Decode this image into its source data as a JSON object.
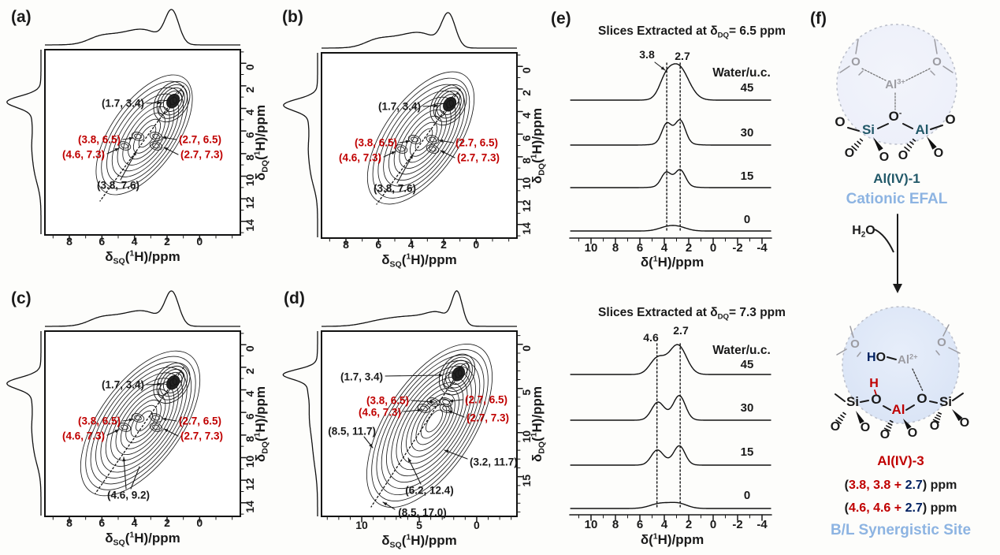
{
  "colors": {
    "ink": "#1A1A1A",
    "red": "#C00000",
    "navy": "#002060",
    "teal": "#215868",
    "light_blue": "#8DB4E2",
    "gray_atom": "#9C9CA2",
    "circle_stroke": "#BDC1CC",
    "circle_fill_top": "#ECEFF9",
    "circle_fill_bottom": "#D7E2F5"
  },
  "axis": {
    "sq_label": {
      "parts": [
        {
          "t": "δ"
        },
        {
          "t": "SQ",
          "k": "sub"
        },
        {
          "t": "("
        },
        {
          "t": "1",
          "k": "sup"
        },
        {
          "t": "H)/ppm"
        }
      ]
    },
    "dq_label": {
      "parts": [
        {
          "t": "δ"
        },
        {
          "t": "DQ",
          "k": "sub"
        },
        {
          "t": "("
        },
        {
          "t": "1",
          "k": "sup"
        },
        {
          "t": "H)/ppm"
        }
      ]
    },
    "h_label": {
      "parts": [
        {
          "t": "δ("
        },
        {
          "t": "1",
          "k": "sup"
        },
        {
          "t": "H)/ppm"
        }
      ]
    }
  },
  "panels_2d": [
    {
      "label": "(a)",
      "x_ticks": [
        "8",
        "6",
        "4",
        "2",
        "0"
      ],
      "y_ticks": [
        "0",
        "2",
        "4",
        "6",
        "8",
        "10",
        "12",
        "14"
      ],
      "annotations": [
        {
          "text": "(1.7, 3.4)",
          "color": "black"
        },
        {
          "text": "(3.8, 6.5)",
          "color": "red"
        },
        {
          "text": "(4.6, 7.3)",
          "color": "red"
        },
        {
          "text": "(2.7, 6.5)",
          "color": "red"
        },
        {
          "text": "(2.7, 7.3)",
          "color": "red"
        },
        {
          "text": "(3.8, 7.6)",
          "color": "black"
        }
      ]
    },
    {
      "label": "(b)",
      "x_ticks": [
        "8",
        "6",
        "4",
        "2",
        "0"
      ],
      "y_ticks": [
        "0",
        "2",
        "4",
        "6",
        "8",
        "10",
        "12",
        "14"
      ],
      "annotations": [
        {
          "text": "(1.7, 3.4)",
          "color": "black"
        },
        {
          "text": "(3.8, 6.5)",
          "color": "red"
        },
        {
          "text": "(4.6, 7.3)",
          "color": "red"
        },
        {
          "text": "(2.7, 6.5)",
          "color": "red"
        },
        {
          "text": "(2.7, 7.3)",
          "color": "red"
        },
        {
          "text": "(3.8, 7.6)",
          "color": "black"
        }
      ]
    },
    {
      "label": "(c)",
      "x_ticks": [
        "8",
        "6",
        "4",
        "2",
        "0"
      ],
      "y_ticks": [
        "0",
        "2",
        "4",
        "6",
        "8",
        "10",
        "12",
        "14"
      ],
      "annotations": [
        {
          "text": "(1.7, 3.4)",
          "color": "black"
        },
        {
          "text": "(3.8, 6.5)",
          "color": "red"
        },
        {
          "text": "(4.6, 7.3)",
          "color": "red"
        },
        {
          "text": "(2.7, 6.5)",
          "color": "red"
        },
        {
          "text": "(2.7, 7.3)",
          "color": "red"
        },
        {
          "text": "(4.6, 9.2)",
          "color": "black"
        }
      ]
    },
    {
      "label": "(d)",
      "x_ticks": [
        "10",
        "5",
        "0"
      ],
      "y_ticks": [
        "0",
        "5",
        "10",
        "15"
      ],
      "annotations": [
        {
          "text": "(1.7, 3.4)",
          "color": "black"
        },
        {
          "text": "(3.8, 6.5)",
          "color": "red"
        },
        {
          "text": "(4.6, 7.3)",
          "color": "red"
        },
        {
          "text": "(2.7, 6.5)",
          "color": "red"
        },
        {
          "text": "(2.7, 7.3)",
          "color": "red"
        },
        {
          "text": "(8.5, 11.7)",
          "color": "black"
        },
        {
          "text": "(3.2, 11.7)",
          "color": "black"
        },
        {
          "text": "(6.2, 12.4)",
          "color": "black"
        },
        {
          "text": "(8.5, 17.0)",
          "color": "black"
        }
      ]
    }
  ],
  "slices": [
    {
      "label": "(e)",
      "title": {
        "parts": [
          {
            "t": "Slices Extracted at δ"
          },
          {
            "t": "DQ",
            "k": "sub"
          },
          {
            "t": "= 6.5 ppm"
          }
        ]
      },
      "peak_labels": [
        "3.8",
        "2.7"
      ],
      "water_label": "Water/u.c.",
      "trace_labels": [
        "45",
        "30",
        "15",
        "0"
      ],
      "x_ticks": [
        "10",
        "8",
        "6",
        "4",
        "2",
        "0",
        "-2",
        "-4"
      ]
    },
    {
      "label": "",
      "title": {
        "parts": [
          {
            "t": "Slices Extracted at δ"
          },
          {
            "t": "DQ",
            "k": "sub"
          },
          {
            "t": "= 7.3 ppm"
          }
        ]
      },
      "peak_labels": [
        "4.6",
        "2.7"
      ],
      "water_label": "Water/u.c.",
      "trace_labels": [
        "45",
        "30",
        "15",
        "0"
      ],
      "x_ticks": [
        "10",
        "8",
        "6",
        "4",
        "2",
        "0",
        "-2",
        "-4"
      ]
    }
  ],
  "scheme": {
    "label": "(f)",
    "top": {
      "o_frame_left": "O",
      "o_frame_right": "O",
      "al_cation": {
        "parts": [
          {
            "t": "Al",
            "c": "gray"
          },
          {
            "t": "3+",
            "k": "sup",
            "c": "gray"
          }
        ]
      },
      "o_bridge": {
        "parts": [
          {
            "t": "O"
          },
          {
            "t": "-",
            "k": "sup"
          }
        ]
      },
      "si": "Si",
      "al": "Al",
      "o_left": "O",
      "o_right": "O",
      "o_si_a": "O",
      "o_si_b": "O",
      "o_al_a": "O",
      "o_al_b": "O",
      "name": "Al(IV)-1",
      "subtitle": "Cationic EFAL"
    },
    "h2o": {
      "parts": [
        {
          "t": "H"
        },
        {
          "t": "2",
          "k": "sub"
        },
        {
          "t": "O"
        }
      ]
    },
    "bottom": {
      "o_frame_left": "O",
      "o_frame_right": "O",
      "ho": {
        "parts": [
          {
            "t": "H",
            "c": "navy"
          },
          {
            "t": "O",
            "c": "black"
          }
        ]
      },
      "al_cation": {
        "parts": [
          {
            "t": "Al",
            "c": "gray"
          },
          {
            "t": "2+",
            "k": "sup",
            "c": "gray"
          }
        ]
      },
      "bronsted_h": "H",
      "si_left": "Si",
      "o_bridge_left": "O",
      "al": "Al",
      "o_bridge_right": "O",
      "si_right": "Si",
      "o_si_l1": "O",
      "o_si_l2": "O",
      "o_al_1": "O",
      "o_al_2": "O",
      "o_si_r1": "O",
      "o_si_r2": "O",
      "name": "Al(IV)-3",
      "ppm_line_1": {
        "parts": [
          {
            "t": "("
          },
          {
            "t": "3.8, 3.8 + ",
            "c": "red"
          },
          {
            "t": "2.7",
            "c": "navy"
          },
          {
            "t": ") ppm"
          }
        ]
      },
      "ppm_line_2": {
        "parts": [
          {
            "t": "("
          },
          {
            "t": "4.6, 4.6 + ",
            "c": "red"
          },
          {
            "t": "2.7",
            "c": "navy"
          },
          {
            "t": ") ppm"
          }
        ]
      },
      "subtitle": "B/L Synergistic Site"
    }
  },
  "chart_data": [
    {
      "id": "a",
      "type": "contour",
      "xlabel": "δSQ(1H)/ppm",
      "ylabel": "δDQ(1H)/ppm",
      "xlim": [
        9.5,
        -2.5
      ],
      "ylim": [
        -1.2,
        15.2
      ],
      "x_ticks": [
        8,
        6,
        4,
        2,
        0
      ],
      "y_ticks": [
        0,
        2,
        4,
        6,
        8,
        10,
        12,
        14
      ],
      "peaks_sq_dq": [
        [
          1.7,
          3.4
        ],
        [
          3.8,
          6.5
        ],
        [
          2.7,
          6.5
        ],
        [
          4.6,
          7.3
        ],
        [
          2.7,
          7.3
        ],
        [
          3.8,
          7.6
        ]
      ],
      "diagonal": "δDQ = 2·δSQ",
      "projections": [
        "top",
        "left"
      ]
    },
    {
      "id": "b",
      "type": "contour",
      "xlabel": "δSQ(1H)/ppm",
      "ylabel": "δDQ(1H)/ppm",
      "xlim": [
        9.5,
        -2.5
      ],
      "ylim": [
        -1.2,
        15.2
      ],
      "x_ticks": [
        8,
        6,
        4,
        2,
        0
      ],
      "y_ticks": [
        0,
        2,
        4,
        6,
        8,
        10,
        12,
        14
      ],
      "peaks_sq_dq": [
        [
          1.7,
          3.4
        ],
        [
          3.8,
          6.5
        ],
        [
          2.7,
          6.5
        ],
        [
          4.6,
          7.3
        ],
        [
          2.7,
          7.3
        ],
        [
          3.8,
          7.6
        ]
      ],
      "diagonal": "δDQ = 2·δSQ",
      "projections": [
        "top",
        "left"
      ]
    },
    {
      "id": "c",
      "type": "contour",
      "xlabel": "δSQ(1H)/ppm",
      "ylabel": "δDQ(1H)/ppm",
      "xlim": [
        9.5,
        -2.5
      ],
      "ylim": [
        -1.2,
        15.2
      ],
      "x_ticks": [
        8,
        6,
        4,
        2,
        0
      ],
      "y_ticks": [
        0,
        2,
        4,
        6,
        8,
        10,
        12,
        14
      ],
      "peaks_sq_dq": [
        [
          1.7,
          3.4
        ],
        [
          3.8,
          6.5
        ],
        [
          2.7,
          6.5
        ],
        [
          4.6,
          7.3
        ],
        [
          2.7,
          7.3
        ],
        [
          4.6,
          9.2
        ]
      ],
      "diagonal": "δDQ = 2·δSQ",
      "projections": [
        "top",
        "left"
      ]
    },
    {
      "id": "d",
      "type": "contour",
      "xlabel": "δSQ(1H)/ppm",
      "ylabel": "δDQ(1H)/ppm",
      "xlim": [
        13.5,
        -3.5
      ],
      "ylim": [
        -1.5,
        19.5
      ],
      "x_ticks": [
        10,
        5,
        0
      ],
      "y_ticks": [
        0,
        5,
        10,
        15
      ],
      "peaks_sq_dq": [
        [
          1.7,
          3.4
        ],
        [
          3.8,
          6.5
        ],
        [
          2.7,
          6.5
        ],
        [
          4.6,
          7.3
        ],
        [
          2.7,
          7.3
        ],
        [
          8.5,
          11.7
        ],
        [
          3.2,
          11.7
        ],
        [
          6.2,
          12.4
        ],
        [
          8.5,
          17.0
        ]
      ],
      "diagonal": "δDQ = 2·δSQ",
      "projections": [
        "top",
        "left"
      ]
    },
    {
      "id": "e_top",
      "type": "line",
      "title": "Slices Extracted at δDQ= 6.5 ppm",
      "xlabel": "δ(1H)/ppm",
      "xlim": [
        11.8,
        -4.8
      ],
      "x_ticks": [
        10,
        8,
        6,
        4,
        2,
        0,
        -2,
        -4
      ],
      "series": [
        {
          "name": "45"
        },
        {
          "name": "30"
        },
        {
          "name": "15"
        },
        {
          "name": "0"
        }
      ],
      "legend_title": "Water/u.c.",
      "marked_peaks": [
        3.8,
        2.7
      ],
      "stacked": true
    },
    {
      "id": "e_bottom",
      "type": "line",
      "title": "Slices Extracted at δDQ= 7.3 ppm",
      "xlabel": "δ(1H)/ppm",
      "xlim": [
        11.8,
        -4.8
      ],
      "x_ticks": [
        10,
        8,
        6,
        4,
        2,
        0,
        -2,
        -4
      ],
      "series": [
        {
          "name": "45"
        },
        {
          "name": "30"
        },
        {
          "name": "15"
        },
        {
          "name": "0"
        }
      ],
      "legend_title": "Water/u.c.",
      "marked_peaks": [
        4.6,
        2.7
      ],
      "stacked": true
    }
  ]
}
